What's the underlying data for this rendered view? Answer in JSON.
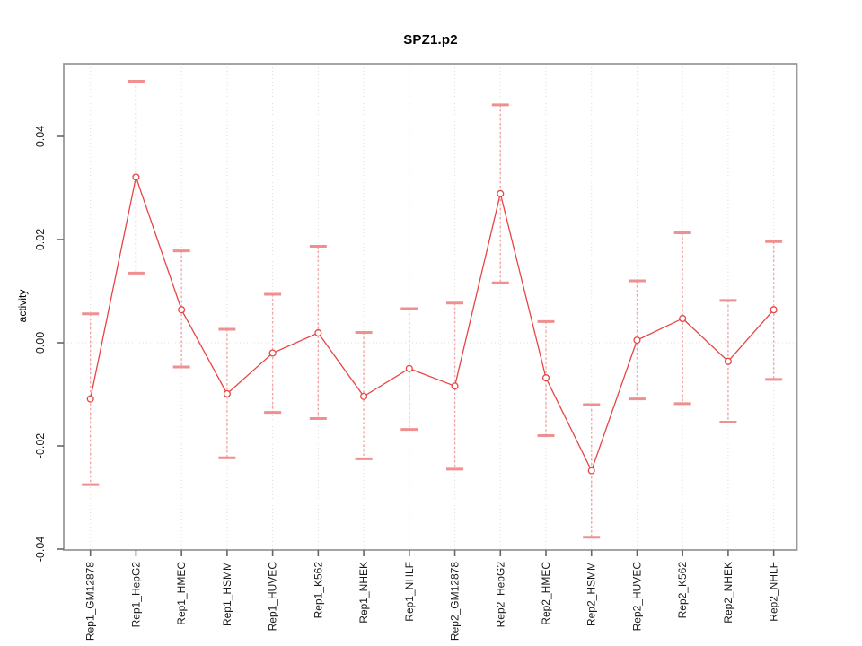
{
  "chart_data": {
    "type": "line",
    "title": "SPZ1.p2",
    "ylabel": "activity",
    "xlabel": "",
    "categories": [
      "Rep1_GM12878",
      "Rep1_HepG2",
      "Rep1_HMEC",
      "Rep1_HSMM",
      "Rep1_HUVEC",
      "Rep1_K562",
      "Rep1_NHEK",
      "Rep1_NHLF",
      "Rep2_GM12878",
      "Rep2_HepG2",
      "Rep2_HMEC",
      "Rep2_HSMM",
      "Rep2_HUVEC",
      "Rep2_K562",
      "Rep2_NHEK",
      "Rep2_NHLF"
    ],
    "series": [
      {
        "name": "activity",
        "values": [
          -0.0109,
          0.0321,
          0.0064,
          -0.0099,
          -0.002,
          0.0019,
          -0.0104,
          -0.005,
          -0.0084,
          0.0289,
          -0.0068,
          -0.0248,
          0.0005,
          0.0047,
          -0.0036,
          0.0064
        ]
      }
    ],
    "error_upper": [
      0.0056,
      0.0507,
      0.0178,
      0.0026,
      0.0094,
      0.0187,
      0.002,
      0.0066,
      0.0077,
      0.0461,
      0.0041,
      -0.012,
      0.012,
      0.0213,
      0.0082,
      0.0196
    ],
    "error_lower": [
      -0.0275,
      0.0135,
      -0.0047,
      -0.0223,
      -0.0135,
      -0.0147,
      -0.0225,
      -0.0168,
      -0.0245,
      0.0116,
      -0.018,
      -0.0377,
      -0.0109,
      -0.0118,
      -0.0154,
      -0.0071
    ],
    "ytick_values": [
      -0.04,
      -0.02,
      0.0,
      0.02,
      0.04
    ],
    "ytick_labels": [
      "-0.04",
      "-0.02",
      "0.00",
      "0.02",
      "0.04"
    ],
    "ylim": [
      -0.0405,
      0.0545
    ],
    "grid": {
      "vertical_dotted_per_category": true,
      "horizontal_zero_line": true,
      "legend": "none"
    },
    "colors": {
      "series_line": "#e84444",
      "point_stroke": "#e84444",
      "error_cap": "#ef8f8f",
      "error_whisker": "#f5a5a5",
      "gridline": "#dcdcdc",
      "plot_border": "#9a9a9a",
      "tick_mark": "#666666",
      "tick_text": "#1a1a1a"
    }
  }
}
